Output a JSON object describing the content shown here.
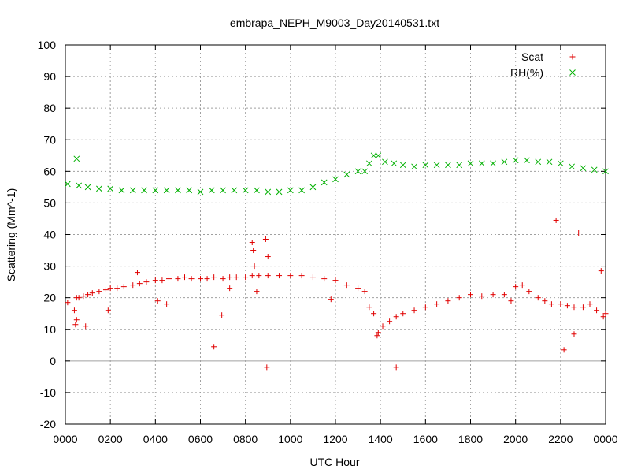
{
  "chart_data": {
    "type": "scatter",
    "title": "embrapa_NEPH_M9003_Day20140531.txt",
    "xlabel": "UTC Hour",
    "ylabel": "Scattering (Mm^-1)",
    "xlim": [
      0,
      24
    ],
    "ylim": [
      -20,
      100
    ],
    "x_ticks": [
      0,
      2,
      4,
      6,
      8,
      10,
      12,
      14,
      16,
      18,
      20,
      22,
      24
    ],
    "x_tick_labels": [
      "0000",
      "0200",
      "0400",
      "0600",
      "0800",
      "1000",
      "1200",
      "1400",
      "1600",
      "1800",
      "2000",
      "2200",
      "0000"
    ],
    "y_ticks": [
      -20,
      -10,
      0,
      10,
      20,
      30,
      40,
      50,
      60,
      70,
      80,
      90,
      100
    ],
    "y_tick_labels": [
      "-20",
      "-10",
      "0",
      "10",
      "20",
      "30",
      "40",
      "50",
      "60",
      "70",
      "80",
      "90",
      "100"
    ],
    "grid": true,
    "legend_position": "top-right",
    "series": [
      {
        "name": "Scat",
        "marker": "+",
        "color": "#e00000",
        "x": [
          0.1,
          0.4,
          0.5,
          0.6,
          0.8,
          1.0,
          1.2,
          1.5,
          1.8,
          2.0,
          2.3,
          2.6,
          3.0,
          3.3,
          3.6,
          4.0,
          4.3,
          4.6,
          5.0,
          5.3,
          5.6,
          6.0,
          6.3,
          6.6,
          7.0,
          7.3,
          7.6,
          8.0,
          8.3,
          8.6,
          9.0,
          9.5,
          10.0,
          10.5,
          11.0,
          11.5,
          12.0,
          12.5,
          13.0,
          13.3,
          13.5,
          13.7,
          13.9,
          14.1,
          14.4,
          14.7,
          15.0,
          15.5,
          16.0,
          16.5,
          17.0,
          17.5,
          18.0,
          18.5,
          19.0,
          19.5,
          19.8,
          20.0,
          20.3,
          20.6,
          21.0,
          21.3,
          21.6,
          22.0,
          22.3,
          22.6,
          23.0,
          23.3,
          23.6,
          23.9,
          24.0,
          0.45,
          0.5,
          1.9,
          4.1,
          4.5,
          6.6,
          6.95,
          7.3,
          8.3,
          8.35,
          8.5,
          8.9,
          8.95,
          9.0,
          11.8,
          13.85,
          14.7,
          21.8,
          22.8,
          23.8,
          22.15,
          22.6,
          0.9,
          3.2,
          8.4
        ],
        "y": [
          18.5,
          16,
          20,
          20,
          20.5,
          21,
          21.5,
          22,
          22.5,
          23,
          23,
          23.5,
          24,
          24.5,
          25,
          25.5,
          25.5,
          26,
          26,
          26.5,
          26,
          26,
          26,
          26.5,
          26,
          26.5,
          26.5,
          26.5,
          27,
          27,
          27,
          27,
          27,
          27,
          26.5,
          26,
          25.5,
          24,
          23,
          22,
          17,
          15,
          9,
          11,
          12.5,
          14,
          15,
          16,
          17,
          18,
          19,
          20,
          21,
          20.5,
          21,
          21,
          19,
          23.5,
          24,
          22,
          20,
          19,
          18,
          18,
          17.5,
          17,
          17,
          18,
          16,
          14,
          15,
          11.5,
          13,
          16,
          19,
          18,
          4.5,
          14.5,
          23,
          37.5,
          35,
          22,
          38.5,
          -2,
          33,
          19.5,
          8,
          -2,
          44.5,
          40.5,
          28.5,
          3.5,
          8.5,
          11,
          28,
          30
        ],
        "note": ""
      },
      {
        "name": "RH(%)",
        "marker": "x",
        "color": "#00b000",
        "x": [
          0.1,
          0.5,
          0.6,
          1.0,
          1.5,
          2.0,
          2.5,
          3.0,
          3.5,
          4.0,
          4.5,
          5.0,
          5.5,
          6.0,
          6.5,
          7.0,
          7.5,
          8.0,
          8.5,
          9.0,
          9.5,
          10.0,
          10.5,
          11.0,
          11.5,
          12.0,
          12.5,
          13.0,
          13.3,
          13.5,
          13.7,
          13.9,
          14.2,
          14.6,
          15.0,
          15.5,
          16.0,
          16.5,
          17.0,
          17.5,
          18.0,
          18.5,
          19.0,
          19.5,
          20.0,
          20.5,
          21.0,
          21.5,
          22.0,
          22.5,
          23.0,
          23.5,
          24.0
        ],
        "y": [
          56,
          64,
          55.5,
          55,
          54.5,
          54.5,
          54,
          54,
          54,
          54,
          54,
          54,
          54,
          53.5,
          54,
          54,
          54,
          54,
          54,
          53.5,
          53.5,
          54,
          54,
          55,
          56.5,
          57.5,
          59,
          60,
          60,
          62.5,
          65,
          65,
          63,
          62.5,
          62,
          61.5,
          62,
          62,
          62,
          62,
          62.5,
          62.5,
          62.5,
          63,
          63.5,
          63.5,
          63,
          63,
          62.5,
          61.5,
          61,
          60.5,
          60
        ]
      }
    ]
  }
}
